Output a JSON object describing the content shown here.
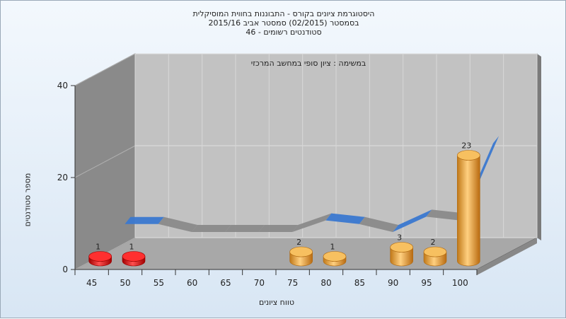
{
  "title_lines": [
    "היסטוגרמת ציונים בקורס - התבוננות בחווית המוסיקלית",
    "בסמסטר  (02/2015)  סמסטר אביב 2015/16",
    "סטודנטים רשומים - 46"
  ],
  "chart_data": {
    "type": "bar",
    "title": "היסטוגרמת ציונים בקורס - התבוננות בחווית המוסיקלית",
    "subtitle": "בסמסטר  (02/2015)  סמסטר אביב 2015/16 | סטודנטים רשומים - 46",
    "annotation": "במשימה : ציון סופי במחשב המרכזי",
    "xlabel": "טווח ציונים",
    "ylabel": "מספר סטודנטים",
    "ylim": [
      0,
      40
    ],
    "yticks": [
      0,
      20,
      40
    ],
    "categories": [
      "45",
      "50",
      "55",
      "60",
      "65",
      "70",
      "75",
      "80",
      "85",
      "90",
      "95",
      "100"
    ],
    "values": [
      1,
      1,
      0,
      0,
      0,
      0,
      2,
      1,
      0,
      3,
      2,
      23
    ],
    "bar_colors": [
      "#e01010",
      "#e01010",
      "#f0a030",
      "#f0a030",
      "#f0a030",
      "#f0a030",
      "#f0a030",
      "#f0a030",
      "#f0a030",
      "#f0a030",
      "#f0a030",
      "#f0a030"
    ],
    "ribbon_colors": {
      "blue": "#3a78d0",
      "gray": "#8a8a8a"
    },
    "grid": true
  }
}
